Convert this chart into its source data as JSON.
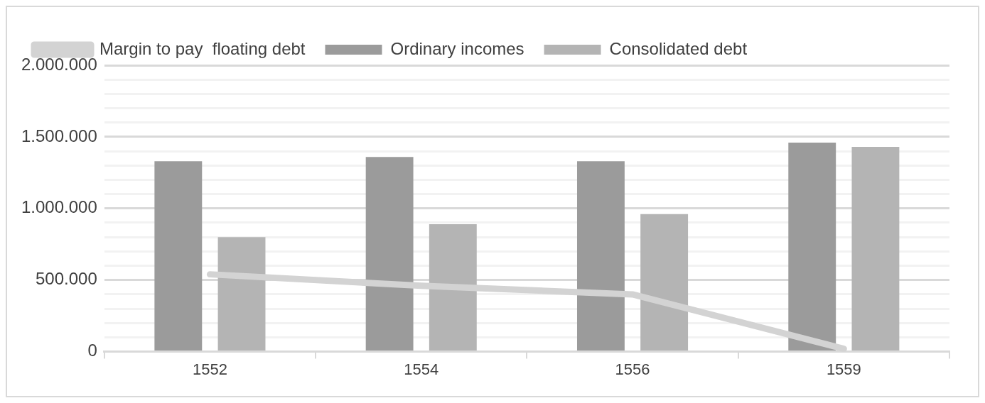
{
  "chart_data": {
    "type": "bar",
    "categories": [
      "1552",
      "1554",
      "1556",
      "1559"
    ],
    "series": [
      {
        "name": "Ordinary incomes",
        "color": "#9b9b9b",
        "values": [
          1330000,
          1360000,
          1330000,
          1460000
        ]
      },
      {
        "name": "Consolidated debt",
        "color": "#b4b4b4",
        "values": [
          800000,
          890000,
          960000,
          1430000
        ]
      },
      {
        "name": "Margin to pay  floating debt",
        "type": "line",
        "color": "#d3d3d3",
        "values": [
          540000,
          460000,
          400000,
          20000
        ]
      }
    ],
    "ylim": [
      0,
      2000000
    ],
    "yticks": [
      {
        "value": 0,
        "label": "0"
      },
      {
        "value": 100000,
        "label": null
      },
      {
        "value": 200000,
        "label": null
      },
      {
        "value": 300000,
        "label": null
      },
      {
        "value": 400000,
        "label": null
      },
      {
        "value": 500000,
        "label": "500.000"
      },
      {
        "value": 600000,
        "label": null
      },
      {
        "value": 700000,
        "label": null
      },
      {
        "value": 800000,
        "label": null
      },
      {
        "value": 900000,
        "label": null
      },
      {
        "value": 1000000,
        "label": "1.000.000"
      },
      {
        "value": 1100000,
        "label": null
      },
      {
        "value": 1200000,
        "label": null
      },
      {
        "value": 1300000,
        "label": null
      },
      {
        "value": 1400000,
        "label": null
      },
      {
        "value": 1500000,
        "label": "1.500.000"
      },
      {
        "value": 1600000,
        "label": null
      },
      {
        "value": 1700000,
        "label": null
      },
      {
        "value": 1800000,
        "label": null
      },
      {
        "value": 1900000,
        "label": null
      },
      {
        "value": 2000000,
        "label": "2.000.000"
      }
    ],
    "grid": "y",
    "legend": "top",
    "marker": "none"
  }
}
